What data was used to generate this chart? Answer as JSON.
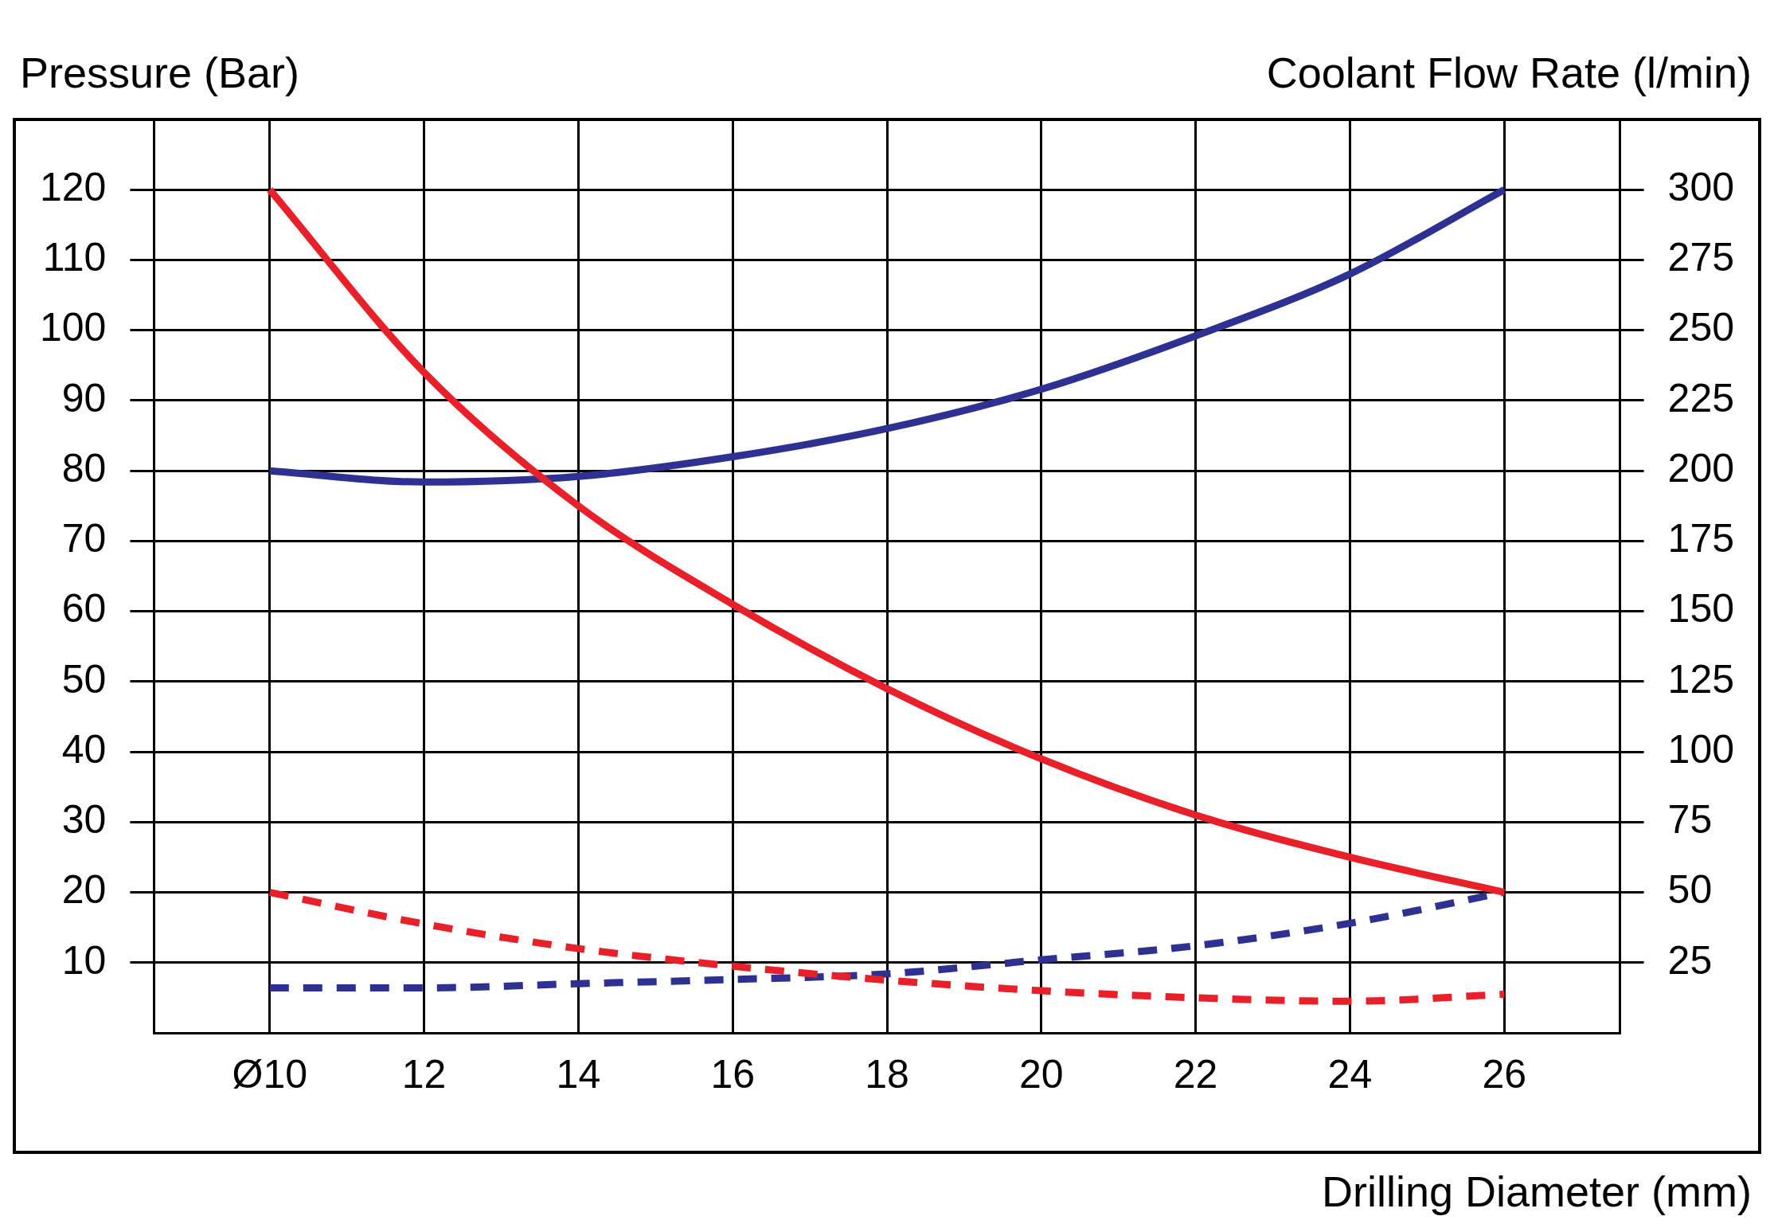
{
  "chart_data": {
    "type": "line",
    "ylabel": "Pressure (Bar)",
    "y2label": "Coolant Flow Rate (l/min)",
    "xlabel": "Drilling Diameter (mm)",
    "x": [
      10,
      12,
      14,
      16,
      18,
      20,
      22,
      24,
      26
    ],
    "xlim": [
      8.5,
      27.5
    ],
    "xticks": [
      {
        "value": 10,
        "label": "Ø10"
      },
      12,
      14,
      16,
      18,
      20,
      22,
      24,
      26
    ],
    "ylim": [
      0,
      130
    ],
    "yticks": [
      10,
      20,
      30,
      40,
      50,
      60,
      70,
      80,
      90,
      100,
      110,
      120
    ],
    "y2lim": [
      0,
      325
    ],
    "y2ticks": [
      25,
      50,
      75,
      100,
      125,
      150,
      175,
      200,
      225,
      250,
      275,
      300
    ],
    "grid": true,
    "marker": "none",
    "series": [
      {
        "color": "#e8202a",
        "values": [
          120,
          94,
          75,
          61,
          49,
          39,
          31,
          25,
          20
        ],
        "line_style": "solid"
      },
      {
        "color": "#2e3192",
        "axis": "y2",
        "values": [
          200,
          196,
          198,
          205,
          215,
          229,
          248,
          270,
          300
        ],
        "line_style": "solid"
      },
      {
        "color": "#e8202a",
        "values": [
          20,
          15.5,
          12,
          9.5,
          7.5,
          6,
          5,
          4.5,
          5.5
        ],
        "line_style": "dashed"
      },
      {
        "color": "#2e3192",
        "axis": "y2",
        "values": [
          16,
          16,
          17.5,
          19,
          21,
          26,
          31,
          39,
          50
        ],
        "line_style": "dashed"
      }
    ]
  }
}
